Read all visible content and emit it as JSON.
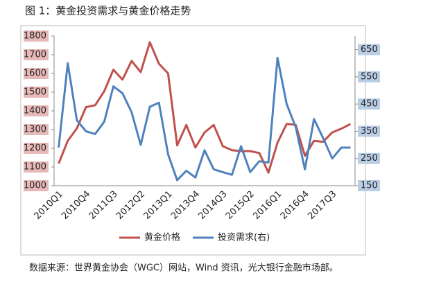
{
  "chart_data": {
    "type": "line",
    "title": "图 1：黄金投资需求与黄金价格走势",
    "source": "数据来源：世界黄金协会（WGC）网站，Wind 资讯，光大银行金融市场部。",
    "categories": [
      "2010Q1",
      null,
      null,
      "2010Q4",
      null,
      null,
      "2011Q3",
      null,
      null,
      "2012Q2",
      null,
      null,
      "2013Q1",
      null,
      null,
      "2013Q4",
      null,
      null,
      "2014Q3",
      null,
      null,
      "2015Q2",
      null,
      null,
      "2016Q1",
      null,
      null,
      "2016Q4",
      null,
      null,
      "2017Q3",
      null,
      null
    ],
    "series": [
      {
        "name": "黄金价格",
        "color": "#c0504d",
        "axis": "y",
        "values": [
          1118,
          1240,
          1307,
          1420,
          1430,
          1505,
          1620,
          1567,
          1667,
          1607,
          1767,
          1652,
          1600,
          1215,
          1325,
          1204,
          1285,
          1325,
          1211,
          1190,
          1185,
          1185,
          1175,
          1070,
          1230,
          1330,
          1325,
          1160,
          1240,
          1235,
          1285,
          1305,
          1330
        ]
      },
      {
        "name": "投资需求(右)",
        "color": "#4f81bd",
        "axis": "y2",
        "values": [
          290,
          600,
          390,
          350,
          340,
          385,
          515,
          490,
          420,
          300,
          440,
          455,
          265,
          170,
          205,
          180,
          280,
          210,
          200,
          190,
          295,
          200,
          240,
          235,
          620,
          450,
          365,
          210,
          395,
          325,
          250,
          290,
          290
        ]
      }
    ],
    "ylim": [
      1000,
      1800
    ],
    "yticks": [
      1000,
      1100,
      1200,
      1300,
      1400,
      1500,
      1600,
      1700,
      1800
    ],
    "y2lim": [
      150,
      700
    ],
    "y2ticks": [
      150,
      250,
      350,
      450,
      550,
      650
    ]
  }
}
